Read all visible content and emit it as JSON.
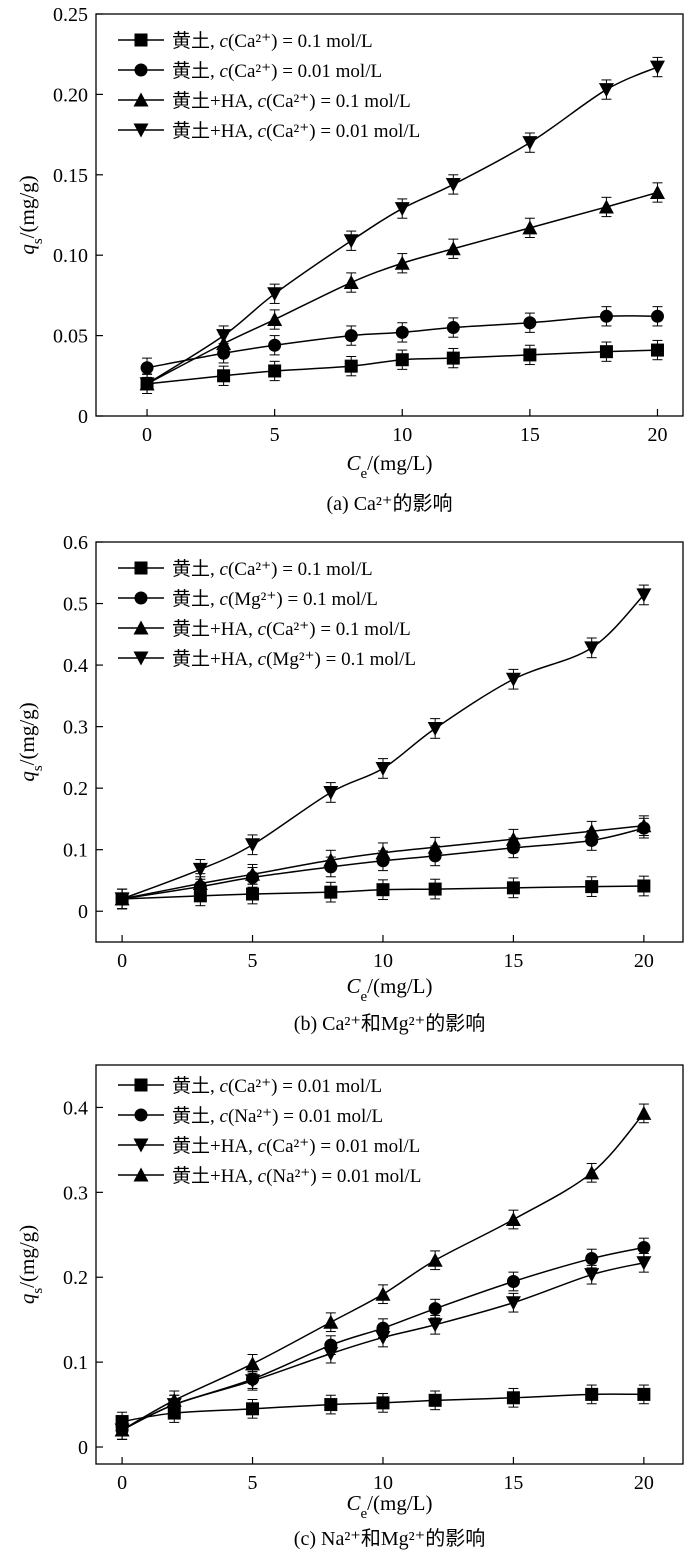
{
  "chart_data": [
    {
      "type": "line",
      "caption": "(a) Ca²⁺的影响",
      "xlabel": "Ce/(mg/L)",
      "ylabel": "qs/(mg/g)",
      "xlim": [
        -2,
        21
      ],
      "ylim": [
        0,
        0.25
      ],
      "xticks": [
        0,
        5,
        10,
        15,
        20
      ],
      "yticks": [
        0,
        0.05,
        0.1,
        0.15,
        0.2,
        0.25
      ],
      "ytick_labels": [
        "0",
        "0.05",
        "0.10",
        "0.15",
        "0.20",
        "0.25"
      ],
      "grid": false,
      "legend_position": "top-left",
      "error_bars": true,
      "series": [
        {
          "name": "黄土, c(Ca²⁺) = 0.1 mol/L",
          "marker": "square",
          "x": [
            0,
            3,
            5,
            8,
            10,
            12,
            15,
            18,
            20
          ],
          "y": [
            0.02,
            0.025,
            0.028,
            0.031,
            0.035,
            0.036,
            0.038,
            0.04,
            0.041
          ],
          "err": 0.006
        },
        {
          "name": "黄土, c(Ca²⁺) = 0.01 mol/L",
          "marker": "circle",
          "x": [
            0,
            3,
            5,
            8,
            10,
            12,
            15,
            18,
            20
          ],
          "y": [
            0.03,
            0.039,
            0.044,
            0.05,
            0.052,
            0.055,
            0.058,
            0.062,
            0.062
          ],
          "err": 0.006
        },
        {
          "name": "黄土+HA, c(Ca²⁺) = 0.1 mol/L",
          "marker": "triangle-up",
          "x": [
            0,
            3,
            5,
            8,
            10,
            12,
            15,
            18,
            20
          ],
          "y": [
            0.02,
            0.045,
            0.06,
            0.083,
            0.095,
            0.104,
            0.117,
            0.13,
            0.139
          ],
          "err": 0.006
        },
        {
          "name": "黄土+HA, c(Ca²⁺) = 0.01 mol/L",
          "marker": "triangle-down",
          "x": [
            0,
            3,
            5,
            8,
            10,
            12,
            15,
            18,
            20
          ],
          "y": [
            0.02,
            0.05,
            0.076,
            0.109,
            0.129,
            0.144,
            0.17,
            0.203,
            0.217
          ],
          "err": 0.006
        }
      ]
    },
    {
      "type": "line",
      "caption": "(b) Ca²⁺和Mg²⁺的影响",
      "xlabel": "Ce/(mg/L)",
      "ylabel": "qs/(mg/g)",
      "xlim": [
        -1,
        21.5
      ],
      "ylim": [
        -0.05,
        0.6
      ],
      "xticks": [
        0,
        5,
        10,
        15,
        20
      ],
      "yticks": [
        0,
        0.1,
        0.2,
        0.3,
        0.4,
        0.5,
        0.6
      ],
      "ytick_labels": [
        "0",
        "0.1",
        "0.2",
        "0.3",
        "0.4",
        "0.5",
        "0.6"
      ],
      "grid": false,
      "legend_position": "top-left",
      "error_bars": true,
      "series": [
        {
          "name": "黄土, c(Ca²⁺) = 0.1 mol/L",
          "marker": "square",
          "x": [
            0,
            3,
            5,
            8,
            10,
            12,
            15,
            18,
            20
          ],
          "y": [
            0.02,
            0.025,
            0.028,
            0.031,
            0.035,
            0.036,
            0.038,
            0.04,
            0.041
          ],
          "err": 0.016
        },
        {
          "name": "黄土, c(Mg²⁺) = 0.1 mol/L",
          "marker": "circle",
          "x": [
            0,
            3,
            5,
            8,
            10,
            12,
            15,
            18,
            20
          ],
          "y": [
            0.02,
            0.04,
            0.055,
            0.072,
            0.082,
            0.09,
            0.103,
            0.115,
            0.135
          ],
          "err": 0.016
        },
        {
          "name": "黄土+HA, c(Ca²⁺) = 0.1 mol/L",
          "marker": "triangle-up",
          "x": [
            0,
            3,
            5,
            8,
            10,
            12,
            15,
            18,
            20
          ],
          "y": [
            0.02,
            0.045,
            0.06,
            0.083,
            0.095,
            0.104,
            0.117,
            0.13,
            0.139
          ],
          "err": 0.016
        },
        {
          "name": "黄土+HA, c(Mg²⁺) = 0.1 mol/L",
          "marker": "triangle-down",
          "x": [
            0,
            3,
            5,
            8,
            10,
            12,
            15,
            18,
            20
          ],
          "y": [
            0.02,
            0.068,
            0.108,
            0.193,
            0.232,
            0.297,
            0.377,
            0.428,
            0.514
          ],
          "err": 0.016
        }
      ]
    },
    {
      "type": "line",
      "caption": "(c) Na²⁺和Mg²⁺的影响",
      "xlabel": "Ce/(mg/L)",
      "ylabel": "qs/(mg/g)",
      "xlim": [
        -1,
        21.5
      ],
      "ylim": [
        -0.02,
        0.45
      ],
      "xticks": [
        0,
        5,
        10,
        15,
        20
      ],
      "yticks": [
        0,
        0.1,
        0.2,
        0.3,
        0.4
      ],
      "ytick_labels": [
        "0",
        "0.1",
        "0.2",
        "0.3",
        "0.4"
      ],
      "grid": false,
      "legend_position": "top-left",
      "error_bars": true,
      "series": [
        {
          "name": "黄土, c(Ca²⁺) = 0.01 mol/L",
          "marker": "square",
          "x": [
            0,
            2,
            5,
            8,
            10,
            12,
            15,
            18,
            20
          ],
          "y": [
            0.03,
            0.04,
            0.045,
            0.05,
            0.052,
            0.055,
            0.058,
            0.062,
            0.062
          ],
          "err": 0.011
        },
        {
          "name": "黄土, c(Na²⁺) = 0.01 mol/L",
          "marker": "circle",
          "x": [
            0,
            2,
            5,
            8,
            10,
            12,
            15,
            18,
            20
          ],
          "y": [
            0.02,
            0.05,
            0.08,
            0.12,
            0.14,
            0.163,
            0.195,
            0.222,
            0.235
          ],
          "err": 0.011
        },
        {
          "name": "黄土+HA, c(Ca²⁺) = 0.01 mol/L",
          "marker": "triangle-down",
          "x": [
            0,
            2,
            5,
            8,
            10,
            12,
            15,
            18,
            20
          ],
          "y": [
            0.02,
            0.05,
            0.078,
            0.11,
            0.129,
            0.144,
            0.17,
            0.203,
            0.217
          ],
          "err": 0.011
        },
        {
          "name": "黄土+HA, c(Na²⁺) = 0.01 mol/L",
          "marker": "triangle-up",
          "x": [
            0,
            2,
            5,
            8,
            10,
            12,
            15,
            18,
            20
          ],
          "y": [
            0.02,
            0.055,
            0.098,
            0.147,
            0.18,
            0.22,
            0.268,
            0.323,
            0.393
          ],
          "err": 0.011
        }
      ]
    }
  ]
}
